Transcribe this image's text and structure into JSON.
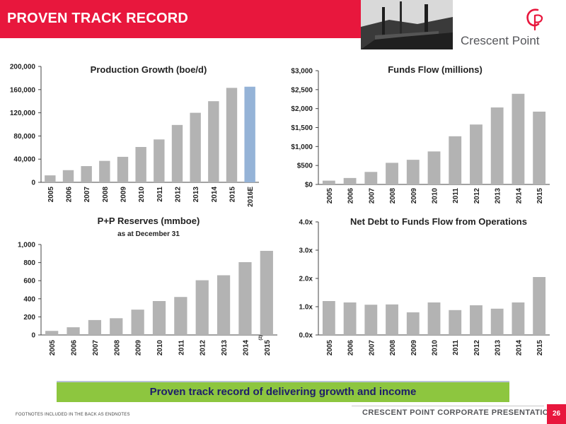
{
  "header": {
    "title": "PROVEN TRACK RECORD"
  },
  "logo": {
    "name": "Crescent Point",
    "accent": "#e8173d"
  },
  "colors": {
    "brand_red": "#e8173d",
    "bar_gray": "#b3b3b3",
    "estimate_blue": "#95b3d7",
    "banner_green": "#8dc63f",
    "banner_text": "#1d1d6b"
  },
  "banner": {
    "text": "Proven track record of delivering growth and income"
  },
  "footer": {
    "footnote": "FOOTNOTES INCLUDED IN THE BACK AS ENDNOTES",
    "corp": "CRESCENT POINT CORPORATE PRESENTATION",
    "page": "26"
  },
  "chart_data": [
    {
      "id": "production",
      "type": "bar",
      "title": "Production Growth (boe/d)",
      "subtitle": "",
      "categories": [
        "2005",
        "2006",
        "2007",
        "2008",
        "2009",
        "2010",
        "2011",
        "2012",
        "2013",
        "2014",
        "2015",
        "2016E"
      ],
      "values": [
        12000,
        21000,
        28000,
        37000,
        44000,
        61000,
        74000,
        99000,
        120000,
        140000,
        163000,
        165000
      ],
      "highlight_index": 11,
      "ylim": [
        0,
        200000
      ],
      "yticks": [
        0,
        40000,
        80000,
        120000,
        160000,
        200000
      ],
      "ytick_labels": [
        "0",
        "40,000",
        "80,000",
        "120,000",
        "160,000",
        "200,000"
      ],
      "grid": false,
      "legend": "none"
    },
    {
      "id": "funds",
      "type": "bar",
      "title": "Funds Flow (millions)",
      "subtitle": "",
      "categories": [
        "2005",
        "2006",
        "2007",
        "2008",
        "2009",
        "2010",
        "2011",
        "2012",
        "2013",
        "2014",
        "2015"
      ],
      "values": [
        100,
        170,
        330,
        570,
        650,
        870,
        1270,
        1580,
        2030,
        2390,
        1920
      ],
      "ylim": [
        0,
        3000
      ],
      "yticks": [
        0,
        500,
        1000,
        1500,
        2000,
        2500,
        3000
      ],
      "ytick_labels": [
        "$0",
        "$500",
        "$1,000",
        "$1,500",
        "$2,000",
        "$2,500",
        "$3,000"
      ],
      "grid": false,
      "legend": "none"
    },
    {
      "id": "reserves",
      "type": "bar",
      "title": "P+P Reserves (mmboe)",
      "subtitle": "as at December 31",
      "categories": [
        "2005",
        "2006",
        "2007",
        "2008",
        "2009",
        "2010",
        "2011",
        "2012",
        "2013",
        "2014",
        "2015"
      ],
      "values": [
        45,
        85,
        165,
        185,
        280,
        375,
        420,
        605,
        660,
        805,
        930
      ],
      "last_tick_note": "(2)",
      "ylim": [
        0,
        1000
      ],
      "yticks": [
        0,
        200,
        400,
        600,
        800,
        1000
      ],
      "ytick_labels": [
        "0",
        "200",
        "400",
        "600",
        "800",
        "1,000"
      ],
      "grid": false,
      "legend": "none"
    },
    {
      "id": "netdebt",
      "type": "bar",
      "title": "Net Debt to Funds Flow from Operations",
      "subtitle": "",
      "categories": [
        "2005",
        "2006",
        "2007",
        "2008",
        "2009",
        "2010",
        "2011",
        "2012",
        "2013",
        "2014",
        "2015"
      ],
      "values": [
        1.2,
        1.15,
        1.07,
        1.08,
        0.8,
        1.15,
        0.88,
        1.05,
        0.93,
        1.15,
        2.05
      ],
      "ylim": [
        0,
        4
      ],
      "yticks": [
        0,
        1,
        2,
        3,
        4
      ],
      "ytick_labels": [
        "0.0x",
        "1.0x",
        "2.0x",
        "3.0x",
        "4.0x"
      ],
      "grid": false,
      "legend": "none"
    }
  ]
}
